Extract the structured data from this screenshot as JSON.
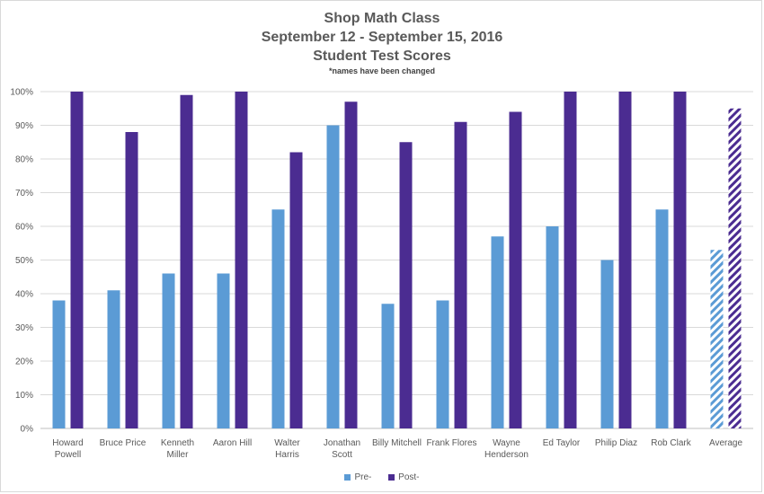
{
  "chart_data": {
    "type": "bar",
    "title": "Shop Math Class",
    "subtitle": "September 12 - September 15, 2016",
    "subtitle2": "Student Test Scores",
    "note": "*names have been changed",
    "categories": [
      "Howard Powell",
      "Bruce Price",
      "Kenneth Miller",
      "Aaron Hill",
      "Walter Harris",
      "Jonathan Scott",
      "Billy Mitchell",
      "Frank Flores",
      "Wayne Henderson",
      "Ed Taylor",
      "Philip Diaz",
      "Rob Clark",
      "Average"
    ],
    "category_lines": [
      [
        "Howard",
        "Powell"
      ],
      [
        "Bruce Price"
      ],
      [
        "Kenneth",
        "Miller"
      ],
      [
        "Aaron Hill"
      ],
      [
        "Walter",
        "Harris"
      ],
      [
        "Jonathan",
        "Scott"
      ],
      [
        "Billy Mitchell"
      ],
      [
        "Frank Flores"
      ],
      [
        "Wayne",
        "Henderson"
      ],
      [
        "Ed Taylor"
      ],
      [
        "Philip Diaz"
      ],
      [
        "Rob Clark"
      ],
      [
        "Average"
      ]
    ],
    "series": [
      {
        "name": "Pre-",
        "color": "#5b9bd5",
        "values": [
          38,
          41,
          46,
          46,
          65,
          90,
          37,
          38,
          57,
          60,
          50,
          65,
          53
        ]
      },
      {
        "name": "Post-",
        "color": "#4b2c91",
        "values": [
          100,
          88,
          99,
          100,
          82,
          97,
          85,
          91,
          94,
          100,
          100,
          100,
          95
        ]
      }
    ],
    "hatched_categories": [
      "Average"
    ],
    "ylim": [
      0,
      100
    ],
    "yticks": [
      "0%",
      "10%",
      "20%",
      "30%",
      "40%",
      "50%",
      "60%",
      "70%",
      "80%",
      "90%",
      "100%"
    ],
    "gridlines": true,
    "legend_position": "bottom"
  }
}
